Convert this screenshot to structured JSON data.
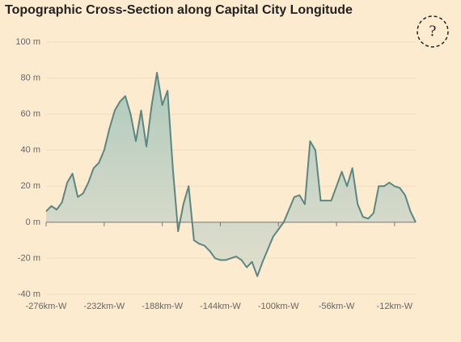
{
  "chart_data": {
    "type": "area",
    "title": "Topographic Cross-Section along Capital City Longitude",
    "x": [
      -276,
      -272,
      -268,
      -264,
      -260,
      -256,
      -252,
      -248,
      -244,
      -240,
      -236,
      -232,
      -228,
      -224,
      -220,
      -216,
      -212,
      -208,
      -204,
      -200,
      -196,
      -192,
      -188,
      -184,
      -180,
      -176,
      -172,
      -168,
      -164,
      -160,
      -156,
      -152,
      -148,
      -144,
      -140,
      -136,
      -132,
      -128,
      -124,
      -120,
      -116,
      -112,
      -108,
      -104,
      -100,
      -96,
      -92,
      -88,
      -84,
      -80,
      -76,
      -72,
      -68,
      -64,
      -60,
      -56,
      -52,
      -48,
      -44,
      -40,
      -36,
      -32,
      -28,
      -24,
      -20,
      -16,
      -12,
      -8,
      -4,
      0,
      4
    ],
    "values": [
      6,
      9,
      7,
      11,
      22,
      27,
      14,
      16,
      22,
      30,
      33,
      40,
      52,
      62,
      67,
      70,
      60,
      45,
      62,
      42,
      65,
      83,
      65,
      73,
      30,
      -5,
      10,
      20,
      -10,
      -12,
      -13,
      -16,
      -20,
      -21,
      -21,
      -20,
      -19,
      -21,
      -25,
      -22,
      -30,
      -22,
      -15,
      -8,
      -4,
      0,
      7,
      14,
      15,
      10,
      45,
      40,
      12,
      12,
      12,
      20,
      28,
      20,
      30,
      10,
      3,
      2,
      5,
      20,
      20,
      22,
      20,
      19,
      15,
      6,
      0
    ],
    "color": "#5b8681",
    "xlim": [
      -276,
      4
    ],
    "xticks": [
      {
        "value": -276,
        "label": "-276km-W"
      },
      {
        "value": -232,
        "label": "-232km-W"
      },
      {
        "value": -188,
        "label": "-188km-W"
      },
      {
        "value": -144,
        "label": "-144km-W"
      },
      {
        "value": -100,
        "label": "-100km-W"
      },
      {
        "value": -56,
        "label": "-56km-W"
      },
      {
        "value": -12,
        "label": "-12km-W"
      }
    ],
    "ylim": [
      -40,
      100
    ],
    "yticks": [
      {
        "value": -40,
        "label": "-40 m"
      },
      {
        "value": -20,
        "label": "-20 m"
      },
      {
        "value": 0,
        "label": "0 m"
      },
      {
        "value": 20,
        "label": "20 m"
      },
      {
        "value": 40,
        "label": "40 m"
      },
      {
        "value": 60,
        "label": "60 m"
      },
      {
        "value": 80,
        "label": "80 m"
      },
      {
        "value": 100,
        "label": "100 m"
      }
    ],
    "grid": true
  },
  "help_label": "?"
}
